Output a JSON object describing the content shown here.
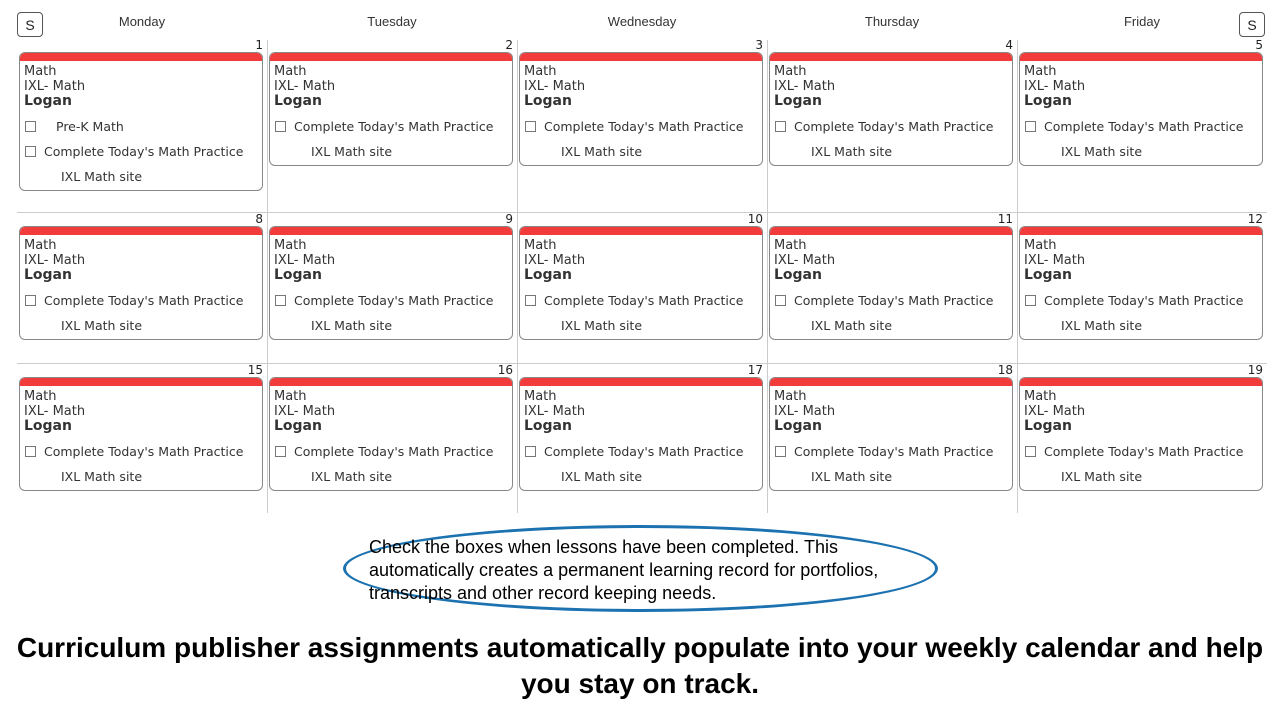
{
  "nav": {
    "prev_label": "S",
    "next_label": "S"
  },
  "days": [
    "Monday",
    "Tuesday",
    "Wednesday",
    "Thursday",
    "Friday"
  ],
  "colors": {
    "subject_bar": "#f23b3b",
    "callout_border": "#1c72b0"
  },
  "weeks": [
    {
      "dates": [
        "1",
        "2",
        "3",
        "4",
        "5"
      ]
    },
    {
      "dates": [
        "8",
        "9",
        "10",
        "11",
        "12"
      ]
    },
    {
      "dates": [
        "15",
        "16",
        "17",
        "18",
        "19"
      ]
    }
  ],
  "card": {
    "subject": "Math",
    "course": "IXL- Math",
    "student": "Logan",
    "task": "Complete Today's Math Practice",
    "link": "IXL Math site"
  },
  "extra_task": {
    "week": 0,
    "day": 0,
    "label": "Pre-K Math"
  },
  "callout": "Check the boxes when lessons have been completed. This automatically creates a permanent learning record for portfolios, transcripts and other record keeping needs.",
  "footer": "Curriculum publisher assignments automatically populate into your weekly calendar and help you stay on track."
}
